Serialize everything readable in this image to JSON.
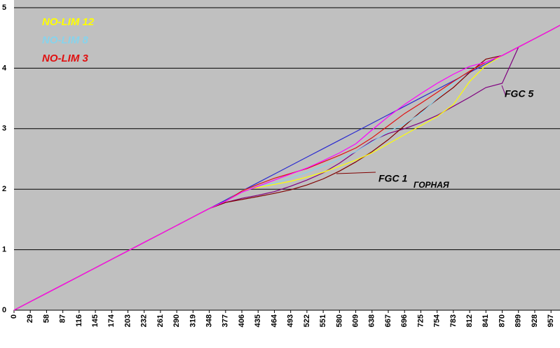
{
  "chart_data": {
    "type": "line",
    "x": [
      0,
      29,
      58,
      87,
      116,
      145,
      174,
      203,
      232,
      261,
      290,
      319,
      348,
      377,
      406,
      435,
      464,
      493,
      522,
      551,
      580,
      609,
      638,
      667,
      696,
      725,
      754,
      783,
      812,
      841,
      870,
      899,
      928,
      957,
      973
    ],
    "xlim": [
      0,
      973
    ],
    "xticks": [
      0,
      29,
      58,
      87,
      116,
      145,
      174,
      203,
      232,
      261,
      290,
      319,
      348,
      377,
      406,
      435,
      464,
      493,
      522,
      551,
      580,
      609,
      638,
      667,
      696,
      725,
      754,
      783,
      812,
      841,
      870,
      899,
      928,
      957
    ],
    "ylim": [
      0,
      5
    ],
    "yticks": [
      0,
      1,
      2,
      3,
      4,
      5
    ],
    "grid": true,
    "legend": "upper left",
    "series": [
      {
        "color": "#2a2ad0",
        "values": [
          0,
          0.14,
          0.28,
          0.42,
          0.56,
          0.7,
          0.84,
          0.98,
          1.12,
          1.26,
          1.4,
          1.54,
          1.68,
          1.82,
          1.97,
          2.11,
          2.25,
          2.39,
          2.53,
          2.67,
          2.81,
          2.95,
          3.09,
          3.23,
          3.37,
          3.51,
          3.65,
          3.79,
          3.93,
          4.07,
          4.21,
          4.35,
          4.49,
          4.63,
          4.71
        ]
      },
      {
        "color": "#800080",
        "values": [
          0,
          0.14,
          0.28,
          0.42,
          0.56,
          0.7,
          0.84,
          0.98,
          1.12,
          1.26,
          1.4,
          1.54,
          1.68,
          1.78,
          1.85,
          1.9,
          1.96,
          2.05,
          2.15,
          2.27,
          2.43,
          2.62,
          2.8,
          2.92,
          3.0,
          3.1,
          3.22,
          3.37,
          3.52,
          3.68,
          3.75,
          4.35,
          4.49,
          4.63,
          4.71
        ]
      },
      {
        "color": "#800000",
        "values": [
          0,
          0.14,
          0.28,
          0.42,
          0.56,
          0.7,
          0.84,
          0.98,
          1.12,
          1.26,
          1.4,
          1.54,
          1.68,
          1.78,
          1.83,
          1.88,
          1.93,
          1.99,
          2.07,
          2.17,
          2.3,
          2.45,
          2.62,
          2.82,
          3.05,
          3.28,
          3.48,
          3.68,
          3.93,
          4.15,
          4.21,
          4.35,
          4.49,
          4.63,
          4.71
        ]
      },
      {
        "name": "NO-LIM 12",
        "color": "#ffff00",
        "values": [
          0,
          0.14,
          0.28,
          0.42,
          0.56,
          0.7,
          0.84,
          0.98,
          1.12,
          1.26,
          1.4,
          1.54,
          1.68,
          1.8,
          1.98,
          2.03,
          2.08,
          2.13,
          2.2,
          2.28,
          2.38,
          2.48,
          2.6,
          2.75,
          2.9,
          3.05,
          3.2,
          3.4,
          3.78,
          4.05,
          4.21,
          4.35,
          4.49,
          4.63,
          4.71
        ]
      },
      {
        "name": "NO-LIM 8",
        "color": "#87d3ec",
        "values": [
          0,
          0.14,
          0.28,
          0.42,
          0.56,
          0.7,
          0.84,
          0.98,
          1.12,
          1.26,
          1.4,
          1.54,
          1.68,
          1.8,
          1.98,
          2.05,
          2.1,
          2.18,
          2.28,
          2.38,
          2.5,
          2.62,
          2.78,
          2.95,
          3.08,
          3.25,
          3.5,
          3.75,
          3.95,
          4.1,
          4.21,
          4.35,
          4.49,
          4.63,
          4.71
        ]
      },
      {
        "name": "NO-LIM 3",
        "color": "#e01010",
        "values": [
          0,
          0.14,
          0.28,
          0.42,
          0.56,
          0.7,
          0.84,
          0.98,
          1.12,
          1.26,
          1.4,
          1.54,
          1.68,
          1.8,
          1.97,
          2.08,
          2.18,
          2.26,
          2.34,
          2.45,
          2.56,
          2.68,
          2.85,
          3.05,
          3.25,
          3.42,
          3.6,
          3.78,
          3.95,
          4.1,
          4.21,
          4.35,
          4.49,
          4.63,
          4.71
        ]
      },
      {
        "color": "#ff00ff",
        "values": [
          0,
          0.14,
          0.28,
          0.42,
          0.56,
          0.7,
          0.84,
          0.98,
          1.12,
          1.26,
          1.4,
          1.54,
          1.68,
          1.8,
          1.95,
          2.05,
          2.15,
          2.25,
          2.35,
          2.47,
          2.6,
          2.75,
          2.98,
          3.2,
          3.4,
          3.58,
          3.75,
          3.9,
          4.03,
          4.1,
          4.21,
          4.35,
          4.49,
          4.63,
          4.71
        ]
      }
    ],
    "annotations": [
      "FGC 5",
      "FGC 1",
      "ГОРНАЯ"
    ]
  }
}
